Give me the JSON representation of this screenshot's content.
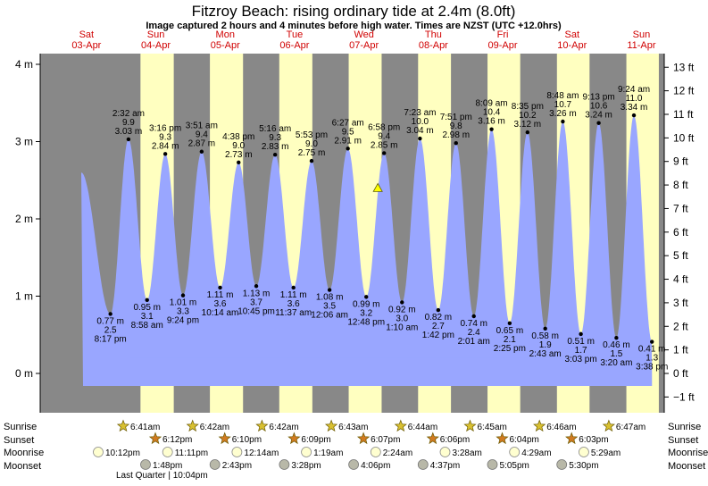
{
  "title": "Fitzroy Beach: rising  ordinary tide at 2.4m (8.0ft)",
  "subtitle": "Image captured 2 hours and 4 minutes before high water. Times are NZST (UTC +12.0hrs)",
  "days": [
    {
      "name": "Sat",
      "date": "03-Apr"
    },
    {
      "name": "Sun",
      "date": "04-Apr"
    },
    {
      "name": "Mon",
      "date": "05-Apr"
    },
    {
      "name": "Tue",
      "date": "06-Apr"
    },
    {
      "name": "Wed",
      "date": "07-Apr"
    },
    {
      "name": "Thu",
      "date": "08-Apr"
    },
    {
      "name": "Fri",
      "date": "09-Apr"
    },
    {
      "name": "Sat",
      "date": "10-Apr"
    },
    {
      "name": "Sun",
      "date": "11-Apr"
    }
  ],
  "row_labels": {
    "sunrise": "Sunrise",
    "sunset": "Sunset",
    "moonrise": "Moonrise",
    "moonset": "Moonset"
  },
  "sunrise": [
    "6:41am",
    "6:42am",
    "6:42am",
    "6:43am",
    "6:44am",
    "6:45am",
    "6:46am",
    "6:47am"
  ],
  "sunset": [
    "6:12pm",
    "6:10pm",
    "6:09pm",
    "6:07pm",
    "6:06pm",
    "6:04pm",
    "6:03pm"
  ],
  "moonrise": [
    "10:12pm",
    "11:11pm",
    "12:14am",
    "1:19am",
    "2:24am",
    "3:28am",
    "4:29am",
    "5:29am"
  ],
  "moonset": [
    "1:48pm",
    "2:43pm",
    "3:28pm",
    "4:06pm",
    "4:37pm",
    "5:05pm",
    "5:30pm"
  ],
  "moon_phase": "Last Quarter | 10:04pm",
  "colors": {
    "night": "#888888",
    "day": "#ffffc0",
    "water": "#99a6ff",
    "day_text": "#d00000",
    "marker": "#ffff00"
  },
  "chart_data": {
    "type": "area",
    "y_left_label": "m",
    "y_right_label": "ft",
    "y_left_ticks": [
      "0 m",
      "1 m",
      "2 m",
      "3 m",
      "4 m"
    ],
    "y_right_ticks": [
      "−1 ft",
      "0 ft",
      "1 ft",
      "2 ft",
      "3 ft",
      "4 ft",
      "5 ft",
      "6 ft",
      "7 ft",
      "8 ft",
      "9 ft",
      "10 ft",
      "11 ft",
      "12 ft",
      "13 ft"
    ],
    "ylim_m": [
      -0.5,
      4.3
    ],
    "x_range": [
      "03-Apr",
      "11-Apr"
    ],
    "current_level_m": 2.4,
    "current_level_ft": 8.0,
    "tides": [
      {
        "type": "low",
        "time": "8:17 pm",
        "day": "03-Apr",
        "m": 0.77,
        "ft": 2.5,
        "label_m": "0.77 m",
        "label_ft": "2.5 ft"
      },
      {
        "type": "high",
        "time": "2:32 am",
        "day": "04-Apr",
        "m": 3.03,
        "ft": 9.9,
        "label_m": "3.03 m",
        "label_ft": "9.9 ft"
      },
      {
        "type": "low",
        "time": "8:58 am",
        "day": "04-Apr",
        "m": 0.95,
        "ft": 3.1,
        "label_m": "0.95 m",
        "label_ft": "3.1 ft"
      },
      {
        "type": "high",
        "time": "3:16 pm",
        "day": "04-Apr",
        "m": 2.84,
        "ft": 9.3,
        "label_m": "2.84 m",
        "label_ft": "9.3 ft"
      },
      {
        "type": "low",
        "time": "9:24 pm",
        "day": "04-Apr",
        "m": 1.01,
        "ft": 3.3,
        "label_m": "1.01 m",
        "label_ft": "3.3 ft"
      },
      {
        "type": "high",
        "time": "3:51 am",
        "day": "05-Apr",
        "m": 2.87,
        "ft": 9.4,
        "label_m": "2.87 m",
        "label_ft": "9.4 ft"
      },
      {
        "type": "low",
        "time": "10:14 am",
        "day": "05-Apr",
        "m": 1.11,
        "ft": 3.6,
        "label_m": "1.11 m",
        "label_ft": "3.6 ft"
      },
      {
        "type": "high",
        "time": "4:38 pm",
        "day": "05-Apr",
        "m": 2.73,
        "ft": 9.0,
        "label_m": "2.73 m",
        "label_ft": "9.0 ft"
      },
      {
        "type": "low",
        "time": "10:45 pm",
        "day": "05-Apr",
        "m": 1.13,
        "ft": 3.7,
        "label_m": "1.13 m",
        "label_ft": "3.7 ft"
      },
      {
        "type": "high",
        "time": "5:16 am",
        "day": "06-Apr",
        "m": 2.83,
        "ft": 9.3,
        "label_m": "2.83 m",
        "label_ft": "9.3 ft"
      },
      {
        "type": "low",
        "time": "11:37 am",
        "day": "06-Apr",
        "m": 1.11,
        "ft": 3.6,
        "label_m": "1.11 m",
        "label_ft": "3.6 ft"
      },
      {
        "type": "high",
        "time": "5:53 pm",
        "day": "06-Apr",
        "m": 2.75,
        "ft": 9.0,
        "label_m": "2.75 m",
        "label_ft": "9.0 ft"
      },
      {
        "type": "low",
        "time": "12:06 am",
        "day": "07-Apr",
        "m": 1.08,
        "ft": 3.5,
        "label_m": "1.08 m",
        "label_ft": "3.5 ft"
      },
      {
        "type": "high",
        "time": "6:27 am",
        "day": "07-Apr",
        "m": 2.91,
        "ft": 9.5,
        "label_m": "2.91 m",
        "label_ft": "9.5 ft"
      },
      {
        "type": "low",
        "time": "12:48 pm",
        "day": "07-Apr",
        "m": 0.99,
        "ft": 3.2,
        "label_m": "0.99 m",
        "label_ft": "3.2 ft"
      },
      {
        "type": "high",
        "time": "6:58 pm",
        "day": "07-Apr",
        "m": 2.85,
        "ft": 9.4,
        "label_m": "2.85 m",
        "label_ft": "9.4 ft"
      },
      {
        "type": "low",
        "time": "1:10 am",
        "day": "08-Apr",
        "m": 0.92,
        "ft": 3.0,
        "label_m": "0.92 m",
        "label_ft": "3.0 ft"
      },
      {
        "type": "high",
        "time": "7:23 am",
        "day": "08-Apr",
        "m": 3.04,
        "ft": 10.0,
        "label_m": "3.04 m",
        "label_ft": "10.0 ft"
      },
      {
        "type": "low",
        "time": "1:42 pm",
        "day": "08-Apr",
        "m": 0.82,
        "ft": 2.7,
        "label_m": "0.82 m",
        "label_ft": "2.7 ft"
      },
      {
        "type": "high",
        "time": "7:51 pm",
        "day": "08-Apr",
        "m": 2.98,
        "ft": 9.8,
        "label_m": "2.98 m",
        "label_ft": "9.8 ft"
      },
      {
        "type": "low",
        "time": "2:01 am",
        "day": "09-Apr",
        "m": 0.74,
        "ft": 2.4,
        "label_m": "0.74 m",
        "label_ft": "2.4 ft"
      },
      {
        "type": "high",
        "time": "8:09 am",
        "day": "09-Apr",
        "m": 3.16,
        "ft": 10.4,
        "label_m": "3.16 m",
        "label_ft": "10.4 ft"
      },
      {
        "type": "low",
        "time": "2:25 pm",
        "day": "09-Apr",
        "m": 0.65,
        "ft": 2.1,
        "label_m": "0.65 m",
        "label_ft": "2.1 ft"
      },
      {
        "type": "high",
        "time": "8:35 pm",
        "day": "09-Apr",
        "m": 3.12,
        "ft": 10.2,
        "label_m": "3.12 m",
        "label_ft": "10.2 ft"
      },
      {
        "type": "low",
        "time": "2:43 am",
        "day": "10-Apr",
        "m": 0.58,
        "ft": 1.9,
        "label_m": "0.58 m",
        "label_ft": "1.9 ft"
      },
      {
        "type": "high",
        "time": "8:48 am",
        "day": "10-Apr",
        "m": 3.26,
        "ft": 10.7,
        "label_m": "3.26 m",
        "label_ft": "10.7 ft"
      },
      {
        "type": "low",
        "time": "3:03 pm",
        "day": "10-Apr",
        "m": 0.51,
        "ft": 1.7,
        "label_m": "0.51 m",
        "label_ft": "1.7 ft"
      },
      {
        "type": "high",
        "time": "9:13 pm",
        "day": "10-Apr",
        "m": 3.24,
        "ft": 10.6,
        "label_m": "3.24 m",
        "label_ft": "10.6 ft"
      },
      {
        "type": "low",
        "time": "3:20 am",
        "day": "11-Apr",
        "m": 0.46,
        "ft": 1.5,
        "label_m": "0.46 m",
        "label_ft": "1.5 ft"
      },
      {
        "type": "high",
        "time": "9:24 am",
        "day": "11-Apr",
        "m": 3.34,
        "ft": 11.0,
        "label_m": "3.34 m",
        "label_ft": "11.0 ft"
      },
      {
        "type": "low",
        "time": "3:38 pm",
        "day": "11-Apr",
        "m": 0.41,
        "ft": 1.3,
        "label_m": "0.41 m",
        "label_ft": "1.3 ft"
      }
    ]
  }
}
